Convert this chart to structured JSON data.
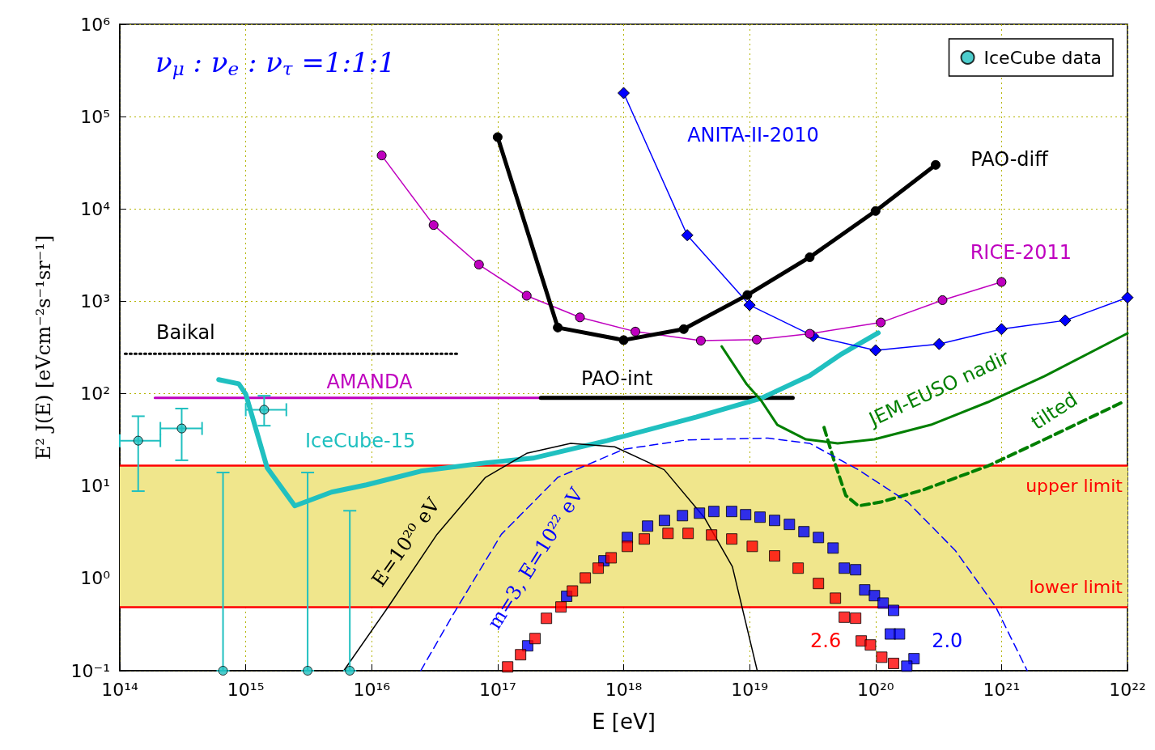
{
  "chart_data": {
    "type": "line",
    "xlabel": "E [eV]",
    "ylabel": "E² J(E) [eVcm⁻²s⁻¹sr⁻¹]",
    "xlim": [
      100000000000000.0,
      1e+22
    ],
    "ylim": [
      0.1,
      1000000.0
    ],
    "xticks": [
      {
        "value": 100000000000000.0,
        "label": "10¹⁴"
      },
      {
        "value": 1000000000000000.0,
        "label": "10¹⁵"
      },
      {
        "value": 1e+16,
        "label": "10¹⁶"
      },
      {
        "value": 1e+17,
        "label": "10¹⁷"
      },
      {
        "value": 1e+18,
        "label": "10¹⁸"
      },
      {
        "value": 1e+19,
        "label": "10¹⁹"
      },
      {
        "value": 1e+20,
        "label": "10²⁰"
      },
      {
        "value": 1e+21,
        "label": "10²¹"
      },
      {
        "value": 1e+22,
        "label": "10²²"
      }
    ],
    "yticks": [
      {
        "value": 0.1,
        "label": "10⁻¹"
      },
      {
        "value": 1,
        "label": "10⁰"
      },
      {
        "value": 10,
        "label": "10¹"
      },
      {
        "value": 100,
        "label": "10²"
      },
      {
        "value": 1000,
        "label": "10³"
      },
      {
        "value": 10000,
        "label": "10⁴"
      },
      {
        "value": 100000,
        "label": "10⁵"
      },
      {
        "value": 1000000,
        "label": "10⁶"
      }
    ],
    "log": "xy",
    "grid": true,
    "legend": "top right",
    "annotations": [
      "ν$_{μ}$ : ν$_{e}$ : ν$_{τ}$ =1:1:1"
    ],
    "bands": [
      {
        "axis": "y",
        "from": 0.49,
        "to": 16.7,
        "color": "#f0e68c"
      }
    ],
    "ref_lines": [
      {
        "axis": "y",
        "value": 16.7,
        "label": "upper limit",
        "color": "#ff0000"
      },
      {
        "axis": "y",
        "value": 0.49,
        "label": "lower limit",
        "color": "#ff0000"
      }
    ],
    "series": [
      {
        "name": "Baikal",
        "type": "line",
        "color": "#000000",
        "line_style": "dotted",
        "marker": "none",
        "x": [
          110000000000000.0,
          4.8e+16
        ],
        "values": [
          270,
          270
        ]
      },
      {
        "name": "AMANDA",
        "type": "line",
        "color": "#bf00bf",
        "marker": "none",
        "x": [
          190000000000000.0,
          2.2e+17
        ],
        "values": [
          90,
          90
        ]
      },
      {
        "name": "PAO-int",
        "type": "line",
        "color": "#000000",
        "marker": "none",
        "x": [
          2.2e+17,
          2.2e+19
        ],
        "values": [
          90,
          90
        ]
      },
      {
        "name": "IceCube-15",
        "type": "line",
        "color": "#20c0c0",
        "marker": "none",
        "x": [
          610000000000000.0,
          880000000000000.0,
          1000000000000000.0,
          1480000000000000.0,
          2450000000000000.0,
          4800000000000000.0,
          9100000000000000.0,
          2.45e+16,
          8e+16,
          1.9e+17,
          7.4e+17,
          3.8e+18,
          1.23e+19,
          3e+19,
          5.4e+19,
          1.05e+20
        ],
        "values": [
          142,
          128,
          99,
          15.7,
          6.1,
          8.6,
          10.3,
          14.5,
          17.8,
          20,
          31,
          56,
          89,
          157,
          270,
          455
        ]
      },
      {
        "name": "RICE-2011",
        "type": "line",
        "color": "#bf00bf",
        "marker": "circle",
        "x": [
          1.2e+16,
          3.1e+16,
          7.1e+16,
          1.7e+17,
          4.5e+17,
          1.24e+18,
          4.1e+18,
          1.14e+19,
          3e+19,
          1.1e+20,
          3.4e+20,
          1e+21
        ],
        "values": [
          38000,
          6700,
          2500,
          1150,
          670,
          470,
          375,
          385,
          445,
          590,
          1030,
          1620
        ]
      },
      {
        "name": "ANITA-II-2010",
        "type": "line",
        "color": "#0000ff",
        "marker": "diamond",
        "x": [
          1e+18,
          3.2e+18,
          1e+19,
          3.2e+19,
          1e+20,
          3.2e+20,
          1e+21,
          3.2e+21,
          1e+22
        ],
        "values": [
          180000,
          5200,
          910,
          420,
          295,
          345,
          500,
          620,
          1100
        ]
      },
      {
        "name": "PAO-diff",
        "type": "line",
        "color": "#000000",
        "marker": "circle",
        "x": [
          1e+17,
          3e+17,
          1e+18,
          3e+18,
          9.6e+18,
          3e+19,
          1e+20,
          3e+20
        ],
        "values": [
          60000,
          520,
          380,
          500,
          1170,
          3000,
          9500,
          30000
        ]
      },
      {
        "name": "JEM-EUSO nadir",
        "type": "line",
        "color": "#007f00",
        "marker": "none",
        "x": [
          6e+18,
          9.5e+18,
          1.23e+19,
          1.66e+19,
          2.8e+19,
          5e+19,
          9.8e+19,
          2.75e+20,
          7.8e+20,
          2.2e+21,
          1e+22
        ],
        "values": [
          325,
          126,
          85,
          46,
          32,
          29,
          32,
          46,
          81,
          155,
          450
        ]
      },
      {
        "name": "tilted",
        "type": "line",
        "color": "#007f00",
        "line_style": "dashed",
        "marker": "none",
        "x": [
          3.9e+19,
          4.7e+19,
          5.8e+19,
          7.3e+19,
          1.1e+20,
          2.4e+20,
          7.8e+20,
          2.2e+21,
          9.5e+21
        ],
        "values": [
          43,
          18.5,
          7.9,
          6.1,
          6.7,
          9.1,
          16.5,
          32,
          83
        ]
      },
      {
        "name": "E=10²⁰ eV",
        "type": "line",
        "color": "#000000",
        "marker": "none",
        "x": [
          6000000000000000.0,
          1.35e+16,
          3.3e+16,
          8e+16,
          1.7e+17,
          3.8e+17,
          8.5e+17,
          2.1e+18,
          4.4e+18,
          7.3e+18,
          1.15e+19
        ],
        "values": [
          0.1,
          0.49,
          3.0,
          12.4,
          22.6,
          29,
          26.6,
          15,
          4.5,
          1.34,
          0.1
        ]
      },
      {
        "name": "m=3, E=10²² eV",
        "type": "line",
        "color": "#0000ff",
        "line_style": "dashed",
        "marker": "none",
        "x": [
          2.45e+16,
          4.4e+16,
          1.07e+17,
          3e+17,
          1e+18,
          3.2e+18,
          1.4e+19,
          3e+19,
          7.3e+19,
          1.8e+20,
          4.3e+20,
          9e+20,
          1.6e+21
        ],
        "values": [
          0.1,
          0.4,
          3.0,
          12.4,
          25,
          31.6,
          33,
          29,
          15,
          6.7,
          2.0,
          0.49,
          0.1
        ]
      },
      {
        "name": "2.0",
        "type": "scatter",
        "color": "#0000ff",
        "marker": "square",
        "x": [
          1.73e+17,
          3.53e+17,
          6.97e+17,
          1.07e+18,
          1.55e+18,
          2.11e+18,
          2.93e+18,
          4e+18,
          5.2e+18,
          7.2e+18,
          9.3e+18,
          1.21e+19,
          1.58e+19,
          2.07e+19,
          2.7e+19,
          3.52e+19,
          4.6e+19,
          5.65e+19,
          6.95e+19,
          8.2e+19,
          9.8e+19,
          1.15e+20,
          1.39e+20,
          1.31e+20,
          1.55e+20,
          2.02e+20,
          1.77e+20
        ],
        "values": [
          0.186,
          0.64,
          1.55,
          2.77,
          3.68,
          4.24,
          4.78,
          5.08,
          5.3,
          5.3,
          4.89,
          4.6,
          4.24,
          3.84,
          3.2,
          2.77,
          2.13,
          1.29,
          1.24,
          0.75,
          0.65,
          0.54,
          0.45,
          0.25,
          0.25,
          0.135,
          0.112
        ]
      },
      {
        "name": "2.6",
        "type": "scatter",
        "color": "#ff0000",
        "marker": "square",
        "x": [
          1.2e+17,
          1.52e+17,
          1.98e+17,
          2.44e+17,
          3.18e+17,
          3.92e+17,
          4.96e+17,
          6.28e+17,
          7.96e+17,
          1.07e+18,
          1.46e+18,
          2.25e+18,
          3.25e+18,
          4.99e+18,
          7.22e+18,
          1.05e+19,
          1.58e+19,
          2.43e+19,
          3.52e+19,
          4.8e+19,
          5.65e+19,
          6.95e+19,
          7.7e+19,
          9.1e+19,
          1.12e+20,
          1.39e+20
        ],
        "values": [
          0.11,
          0.149,
          0.223,
          0.369,
          0.49,
          0.73,
          1.01,
          1.29,
          1.67,
          2.22,
          2.67,
          3.07,
          3.07,
          2.95,
          2.67,
          2.22,
          1.75,
          1.29,
          0.88,
          0.61,
          0.38,
          0.37,
          0.21,
          0.19,
          0.14,
          0.12
        ]
      },
      {
        "name": "IceCube data",
        "type": "scatter",
        "color": "#20c0c0",
        "marker": "circle",
        "x": [
          140000000000000.0,
          310000000000000.0,
          660000000000000.0,
          1400000000000000.0,
          3100000000000000.0,
          6700000000000000.0
        ],
        "values": [
          31,
          42,
          0.1,
          67,
          0.1,
          0.1
        ],
        "errors": [
          [
            8.8,
            57
          ],
          [
            19,
            69
          ],
          [
            0.1,
            14
          ],
          [
            45,
            95
          ],
          [
            0.1,
            14
          ],
          [
            0.1,
            5.4
          ]
        ],
        "xerrors": [
          [
            100000000000000.0,
            210000000000000.0
          ],
          [
            210000000000000.0,
            450000000000000.0
          ],
          null,
          [
            1000000000000000.0,
            2100000000000000.0
          ],
          null,
          null
        ]
      }
    ]
  }
}
